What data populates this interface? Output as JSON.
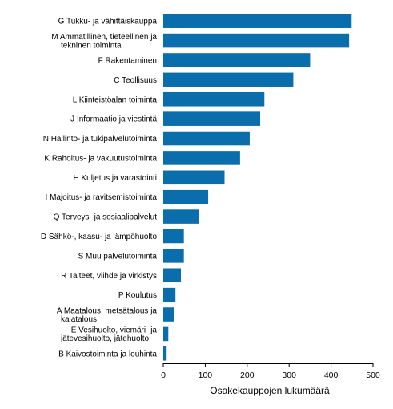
{
  "chart_data": {
    "type": "bar",
    "orientation": "horizontal",
    "categories": [
      "G Tukku- ja vähittäiskauppa",
      "M Ammatillinen, tieteellinen ja tekninen toiminta",
      "F Rakentaminen",
      "C Teollisuus",
      "L Kiinteistöalan toiminta",
      "J Informaatio ja viestintä",
      "N Hallinto- ja tukipalvelutoiminta",
      "K Rahoitus- ja vakuutustoiminta",
      "H Kuljetus ja varastointi",
      "I Majoitus- ja ravitsemistoiminta",
      "Q Terveys- ja sosiaalipalvelut",
      "D Sähkö-, kaasu- ja lämpöhuolto",
      "S Muu palvelutoiminta",
      "R Taiteet, viihde ja virkistys",
      "P Koulutus",
      "A Maatalous, metsätalous ja kalatalous",
      "E Vesihuolto, viemäri- ja jätevesihuolto, jätehuolto",
      "B Kaivostoiminta ja louhinta"
    ],
    "values": [
      449,
      443,
      350,
      310,
      241,
      231,
      206,
      183,
      146,
      107,
      85,
      49,
      49,
      42,
      29,
      26,
      12,
      8
    ],
    "xlabel": "Osakekauppojen lukumäärä",
    "ylabel": "",
    "xlim": [
      0,
      500
    ],
    "xticks": [
      "0",
      "100",
      "200",
      "300",
      "400",
      "500"
    ],
    "grid": false,
    "legend": "none",
    "bar_color": "#0a6ead"
  }
}
